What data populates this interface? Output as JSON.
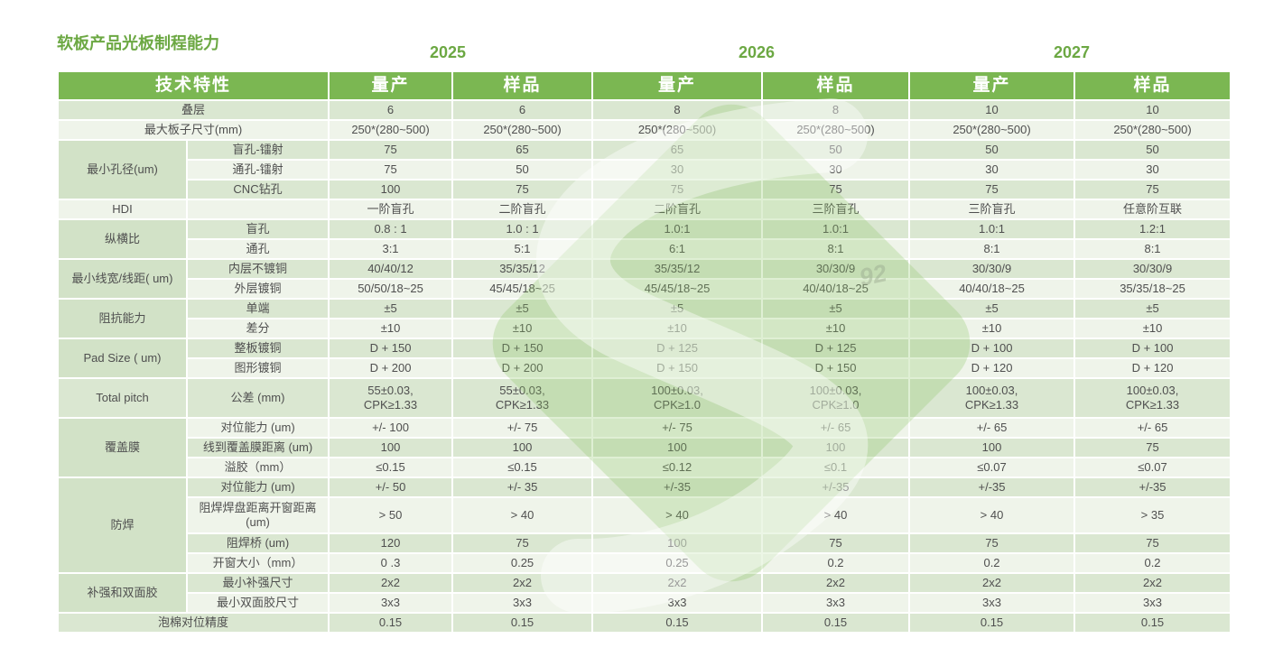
{
  "title": "软板产品光板制程能力",
  "years": [
    "2025",
    "2026",
    "2027"
  ],
  "colors": {
    "green_text": "#6CA843",
    "header_bg": "#7BB752",
    "row_dark": "#DAE7D1",
    "row_light": "#EFF4EA",
    "group_bg": "#D2E2C7",
    "text": "#4F4F4F",
    "logo_green": "#8DC663",
    "wm_fragment": "#9AA98F"
  },
  "watermark": {
    "logo_icon": "s-diamond-logo",
    "fragment": "92"
  },
  "table": {
    "feature_label": "技术特性",
    "col_labels": [
      "量产",
      "样品",
      "量产",
      "样品",
      "量产",
      "样品"
    ],
    "rows": [
      {
        "label": "叠层",
        "values": [
          "6",
          "6",
          "8",
          "8",
          "10",
          "10"
        ]
      },
      {
        "label": "最大板子尺寸(mm)",
        "values": [
          "250*(280~500)",
          "250*(280~500)",
          "250*(280~500)",
          "250*(280~500)",
          "250*(280~500)",
          "250*(280~500)"
        ]
      },
      {
        "group": "最小孔径(um)",
        "rowspan": 3,
        "sub": "盲孔-镭射",
        "values": [
          "75",
          "65",
          "65",
          "50",
          "50",
          "50"
        ]
      },
      {
        "sub": "通孔-镭射",
        "values": [
          "75",
          "50",
          "30",
          "30",
          "30",
          "30"
        ]
      },
      {
        "sub": "CNC钻孔",
        "values": [
          "100",
          "75",
          "75",
          "75",
          "75",
          "75"
        ]
      },
      {
        "group": "HDI",
        "rowspan": 1,
        "sub": "",
        "values": [
          "一阶盲孔",
          "二阶盲孔",
          "二阶盲孔",
          "三阶盲孔",
          "三阶盲孔",
          "任意阶互联"
        ]
      },
      {
        "group": "纵横比",
        "rowspan": 2,
        "sub": "盲孔",
        "values": [
          "0.8 : 1",
          "1.0 : 1",
          "1.0:1",
          "1.0:1",
          "1.0:1",
          "1.2:1"
        ]
      },
      {
        "sub": "通孔",
        "values": [
          "3:1",
          "5:1",
          "6:1",
          "8:1",
          "8:1",
          "8:1"
        ]
      },
      {
        "group": "最小线宽/线距( um)",
        "rowspan": 2,
        "sub": "内层不镀铜",
        "values": [
          "40/40/12",
          "35/35/12",
          "35/35/12",
          "30/30/9",
          "30/30/9",
          "30/30/9"
        ]
      },
      {
        "sub": "外层镀铜",
        "values": [
          "50/50/18~25",
          "45/45/18~25",
          "45/45/18~25",
          "40/40/18~25",
          "40/40/18~25",
          "35/35/18~25"
        ]
      },
      {
        "group": "阻抗能力",
        "rowspan": 2,
        "sub": "单端",
        "values": [
          "±5",
          "±5",
          "±5",
          "±5",
          "±5",
          "±5"
        ]
      },
      {
        "sub": "差分",
        "values": [
          "±10",
          "±10",
          "±10",
          "±10",
          "±10",
          "±10"
        ]
      },
      {
        "group": "Pad Size ( um)",
        "rowspan": 2,
        "sub": "整板镀铜",
        "values": [
          "D + 150",
          "D + 150",
          "D + 125",
          "D + 125",
          "D + 100",
          "D + 100"
        ]
      },
      {
        "sub": "图形镀铜",
        "values": [
          "D + 200",
          "D + 200",
          "D + 150",
          "D + 150",
          "D + 120",
          "D + 120"
        ]
      },
      {
        "group": "Total pitch",
        "rowspan": 1,
        "sub": "公差 (mm)",
        "height": 42,
        "values": [
          "55±0.03,\nCPK≥1.33",
          "55±0.03,\nCPK≥1.33",
          "100±0.03,\nCPK≥1.0",
          "100±0.03,\nCPK≥1.0",
          "100±0.03,\nCPK≥1.33",
          "100±0.03,\nCPK≥1.33"
        ]
      },
      {
        "group": "覆盖膜",
        "rowspan": 3,
        "sub": "对位能力 (um)",
        "values": [
          "+/- 100",
          "+/- 75",
          "+/- 75",
          "+/- 65",
          "+/- 65",
          "+/- 65"
        ]
      },
      {
        "sub": "线到覆盖膜距离 (um)",
        "values": [
          "100",
          "100",
          "100",
          "100",
          "100",
          "75"
        ]
      },
      {
        "sub": "溢胶（mm）",
        "values": [
          "≤0.15",
          "≤0.15",
          "≤0.12",
          "≤0.1",
          "≤0.07",
          "≤0.07"
        ]
      },
      {
        "group": "防焊",
        "rowspan": 4,
        "sub": "对位能力 (um)",
        "values": [
          "+/- 50",
          "+/- 35",
          "+/-35",
          "+/-35",
          "+/-35",
          "+/-35"
        ]
      },
      {
        "sub": "阻焊焊盘距离开窗距离\n(um)",
        "height": 38,
        "values": [
          "> 50",
          "> 40",
          "> 40",
          "> 40",
          "> 40",
          "> 35"
        ]
      },
      {
        "sub": "阻焊桥 (um)",
        "values": [
          "120",
          "75",
          "100",
          "75",
          "75",
          "75"
        ]
      },
      {
        "sub": "开窗大小（mm）",
        "values": [
          "0 .3",
          "0.25",
          "0.25",
          "0.2",
          "0.2",
          "0.2"
        ]
      },
      {
        "group": "补强和双面胶",
        "rowspan": 2,
        "sub": "最小补强尺寸",
        "values": [
          "2x2",
          "2x2",
          "2x2",
          "2x2",
          "2x2",
          "2x2"
        ]
      },
      {
        "sub": "最小双面胶尺寸",
        "values": [
          "3x3",
          "3x3",
          "3x3",
          "3x3",
          "3x3",
          "3x3"
        ]
      },
      {
        "label": "泡棉对位精度",
        "values": [
          "0.15",
          "0.15",
          "0.15",
          "0.15",
          "0.15",
          "0.15"
        ]
      }
    ]
  }
}
